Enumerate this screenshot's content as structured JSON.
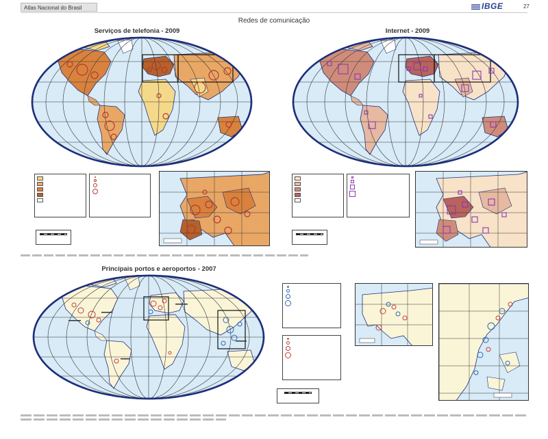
{
  "header": {
    "atlas_title": "Atlas Nacional do Brasil",
    "publisher": "IBGE",
    "page_number": "27"
  },
  "page_title": "Redes de comunicação",
  "maps": {
    "telephony": {
      "title": "Serviços de telefonia - 2009",
      "choropleth_colors": [
        "#f5d98a",
        "#e9a765",
        "#d9823d",
        "#b6612a",
        "#ffffff"
      ],
      "symbol_color": "#b23a2e"
    },
    "internet": {
      "title": "Internet - 2009",
      "choropleth_colors": [
        "#f8e2c8",
        "#e6b9a0",
        "#d08c7a",
        "#b9635c",
        "#ffffff"
      ],
      "symbol_color": "#8a37b3"
    },
    "ports": {
      "title": "Principais portos e aeroportos - 2007",
      "port_color": "#2a6ab0",
      "airport_color": "#c43c3c"
    }
  },
  "colors": {
    "ocean": "#d8ebf7",
    "land": "#fbf5d8",
    "coast": "#1e2f7a",
    "grid": "#333333"
  }
}
